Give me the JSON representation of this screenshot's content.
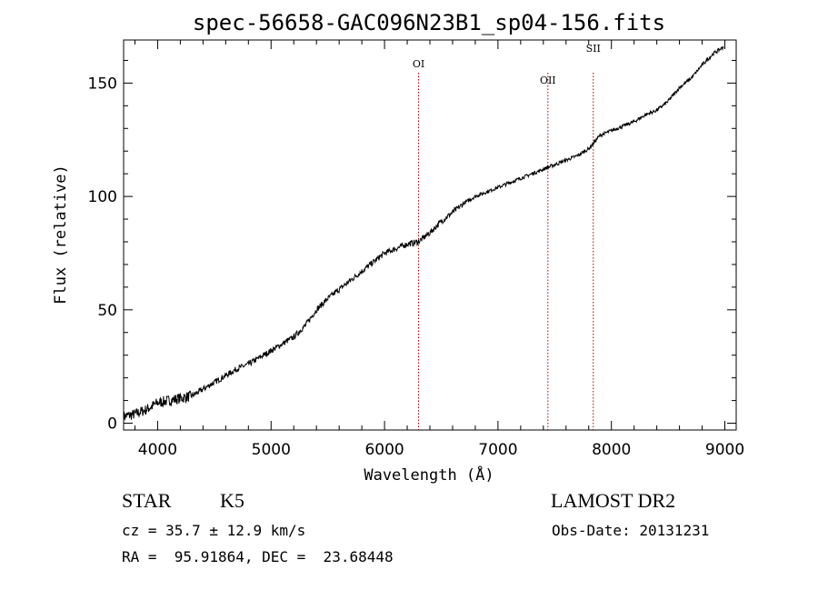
{
  "chart_data": {
    "type": "line",
    "title": "spec-56658-GAC096N23B1_sp04-156.fits",
    "xlabel": "Wavelength (Å)",
    "ylabel": "Flux (relative)",
    "xlim": [
      3700,
      9100
    ],
    "ylim": [
      -3,
      169
    ],
    "x_ticks": [
      4000,
      5000,
      6000,
      7000,
      8000,
      9000
    ],
    "y_ticks": [
      0,
      50,
      100,
      150
    ],
    "grid": false,
    "series": [
      {
        "x": [
          3700,
          3800,
          3900,
          4000,
          4100,
          4200,
          4300,
          4400,
          4500,
          4600,
          4700,
          4800,
          4900,
          5000,
          5100,
          5200,
          5300,
          5400,
          5500,
          5600,
          5700,
          5800,
          5900,
          6000,
          6100,
          6200,
          6300,
          6400,
          6500,
          6600,
          6700,
          6800,
          6900,
          7000,
          7100,
          7200,
          7300,
          7400,
          7500,
          7600,
          7700,
          7800,
          7900,
          8000,
          8100,
          8200,
          8300,
          8400,
          8500,
          8600,
          8700,
          8800,
          8900,
          8990
        ],
        "y": [
          3,
          4,
          6,
          9,
          10,
          11,
          12,
          15,
          18,
          21,
          24,
          26,
          29,
          32,
          35,
          38,
          43,
          50,
          55,
          59,
          63,
          67,
          71,
          75,
          77,
          79,
          80,
          84,
          89,
          93,
          97,
          100,
          102,
          104,
          106,
          108,
          110,
          112,
          114,
          116,
          118,
          121,
          127,
          129,
          131,
          133,
          136,
          138,
          142,
          148,
          152,
          158,
          163,
          166
        ]
      }
    ],
    "lines": [
      {
        "label": "OI",
        "x": 6300
      },
      {
        "label": "OII",
        "x": 7440
      },
      {
        "label": "SII",
        "x": 7840
      }
    ]
  },
  "info": {
    "object_class": "STAR",
    "subclass": "K5",
    "survey": "LAMOST DR2",
    "cz": "cz = 35.7 ± 12.9 km/s",
    "obs_date": "Obs-Date: 20131231",
    "coords": "RA =  95.91864, DEC =  23.68448"
  },
  "colors": {
    "spectrum": "#000000",
    "line_markers": "#aa0000"
  }
}
